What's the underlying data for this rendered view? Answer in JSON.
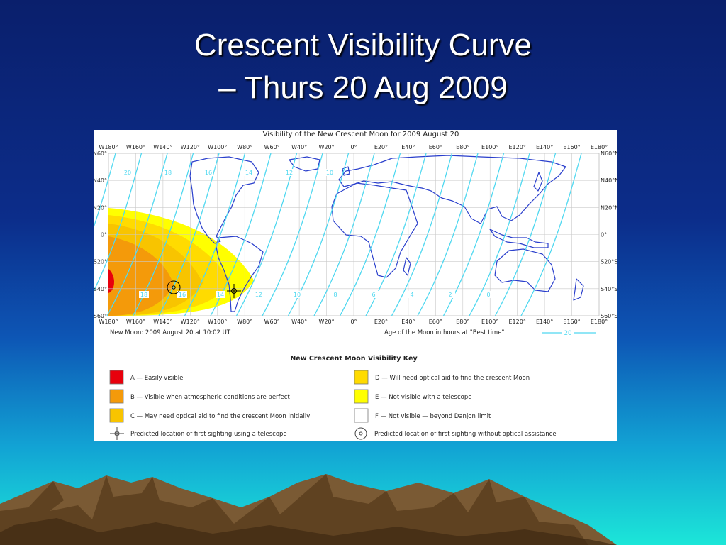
{
  "slide": {
    "title_line1": "Crescent Visibility Curve",
    "title_line2": "– Thurs 20 Aug 2009"
  },
  "figure": {
    "title": "Visibility of the New Crescent Moon for 2009 August 20",
    "top_lon_labels": [
      "W180°",
      "W160°",
      "W140°",
      "W120°",
      "W100°",
      "W80°",
      "W60°",
      "W40°",
      "W20°",
      "0°",
      "E20°",
      "E40°",
      "E60°",
      "E80°",
      "E100°",
      "E120°",
      "E140°",
      "E160°",
      "E180°"
    ],
    "bottom_lon_labels": [
      "W180°",
      "W160°",
      "W140°",
      "W120°",
      "W100°",
      "W80°",
      "W60°",
      "W40°",
      "W20°",
      "0°",
      "E20°",
      "E40°",
      "E60°",
      "E80°",
      "E100°",
      "E120°",
      "E140°",
      "E160°",
      "E180°"
    ],
    "left_lat_labels": [
      "N60°",
      "N40°",
      "N20°",
      "0°",
      "S20°",
      "S40°",
      "S60°"
    ],
    "right_lat_labels": [
      "N60°N",
      "N40°N",
      "N20°N",
      "0°",
      "S20°S",
      "S40°S",
      "S60°S"
    ],
    "new_moon_text": "New Moon: 2009 August 20 at 10:02 UT",
    "age_text": "Age of the Moon in hours at \"Best time\"",
    "age_sample": "20",
    "contour_labels_top": [
      "20",
      "18",
      "16",
      "14",
      "12",
      "10"
    ],
    "contour_labels_bottom": [
      "18",
      "16",
      "14",
      "12",
      "10",
      "8",
      "6",
      "4",
      "2",
      "0"
    ],
    "key_title": "New Crescent Moon Visibility Key",
    "key": [
      {
        "code": "A",
        "text": "A — Easily visible",
        "color": "#e8000c"
      },
      {
        "code": "B",
        "text": "B — Visible when atmospheric conditions are perfect",
        "color": "#f49a0a"
      },
      {
        "code": "C",
        "text": "C — May need optical aid to find the crescent Moon initially",
        "color": "#f8c400"
      },
      {
        "code": "D",
        "text": "D — Will need optical aid to find the crescent Moon",
        "color": "#ffdb00"
      },
      {
        "code": "E",
        "text": "E — Not visible with a telescope",
        "color": "#ffff00"
      },
      {
        "code": "F",
        "text": "F — Not visible — beyond Danjon limit",
        "color": "#ffffff"
      }
    ],
    "marker_telescope": "Predicted location of first sighting using a telescope",
    "marker_naked": "Predicted location of first sighting without optical assistance",
    "colors": {
      "contour": "#4fd8f0",
      "grid": "#c9c9c9",
      "coast": "#2a3fcc"
    }
  }
}
